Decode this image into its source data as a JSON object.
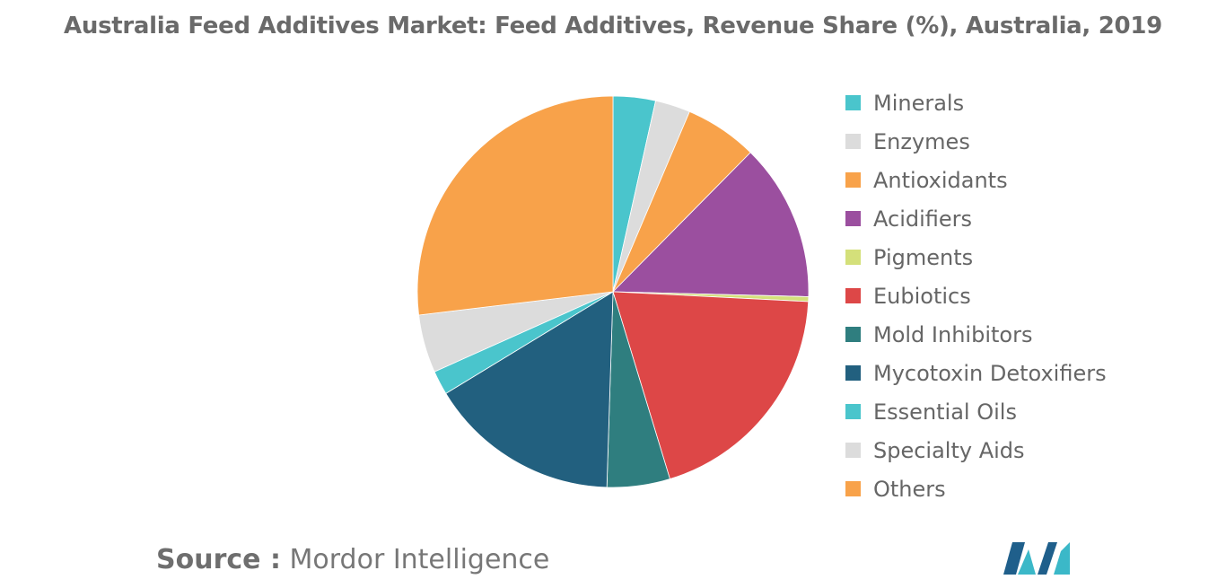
{
  "chart_data": {
    "type": "pie",
    "title": "Australia Feed Additives Market: Feed Additives, Revenue Share (%), Australia, 2019",
    "legend_position": "right",
    "slices": [
      {
        "label": "Minerals",
        "value": 3.5,
        "color": "#4ac5cc"
      },
      {
        "label": "Enzymes",
        "value": 2.9,
        "color": "#dcdcdc"
      },
      {
        "label": "Antioxidants",
        "value": 6.0,
        "color": "#f8a24a"
      },
      {
        "label": "Acidifiers",
        "value": 13.0,
        "color": "#9b4f9f"
      },
      {
        "label": "Pigments",
        "value": 0.4,
        "color": "#d4e07a"
      },
      {
        "label": "Eubiotics",
        "value": 19.5,
        "color": "#dd4747"
      },
      {
        "label": "Mold Inhibitors",
        "value": 5.2,
        "color": "#2f7e7f"
      },
      {
        "label": "Mycotoxin Detoxifiers",
        "value": 15.8,
        "color": "#22607f"
      },
      {
        "label": "Essential Oils",
        "value": 2.0,
        "color": "#4ac5cc"
      },
      {
        "label": "Specialty Aids",
        "value": 4.8,
        "color": "#dcdcdc"
      },
      {
        "label": "Others",
        "value": 26.9,
        "color": "#f8a24a"
      }
    ]
  },
  "footer": {
    "source_prefix": "Source :",
    "source_name": "Mordor Intelligence"
  },
  "logo": {
    "icon": "mordor-intelligence-logo-icon",
    "colors": [
      "#1f5f8b",
      "#3bb8c8"
    ]
  }
}
